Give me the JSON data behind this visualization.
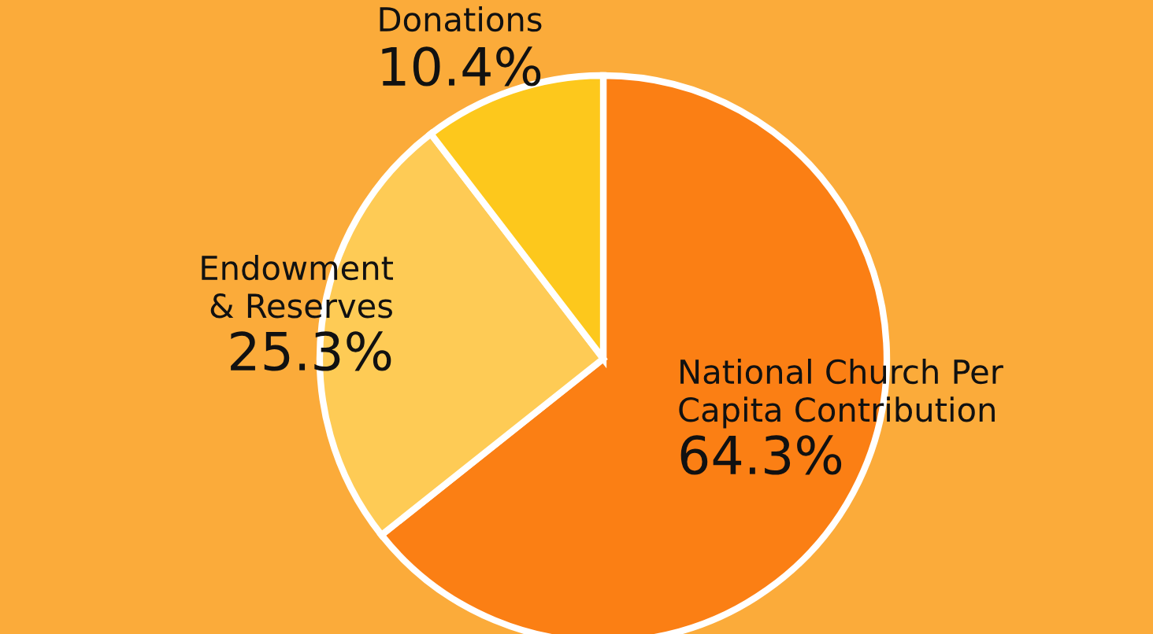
{
  "chart_data": {
    "type": "pie",
    "categories": [
      "National Church Per\nCapita Contribution",
      "Endowment\n& Reserves",
      "Donations"
    ],
    "values": [
      64.3,
      25.3,
      10.4
    ],
    "colors": [
      "#fb7f14",
      "#fecb55",
      "#fdc81c"
    ],
    "value_labels": [
      "64.3%",
      "25.3%",
      "10.4%"
    ],
    "legend": false
  }
}
